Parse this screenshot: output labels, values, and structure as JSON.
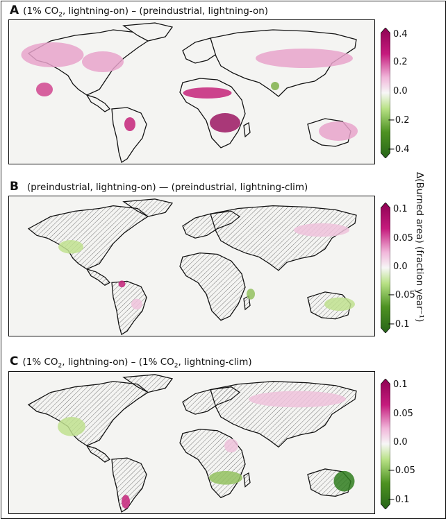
{
  "colorbar_label": "Δ(Burned area) (fraction year⁻¹)",
  "colors": {
    "cmap_neg": "#2e7d1b",
    "cmap_mid": "#f5f5f5",
    "cmap_pos": "#a3115f",
    "ocean_bg": "#f4f4f2",
    "land_hatch": "#555555",
    "coast": "#111111"
  },
  "panels": [
    {
      "letter": "A",
      "title_pre": "(1% CO",
      "title_sub": "2",
      "title_post": ", lightning-on) – (preindustrial, lightning-on)",
      "colorbar_ticks": [
        "0.4",
        "0.2",
        "0.0",
        "−0.2",
        "−0.4"
      ],
      "colorbar_range": [
        -0.4,
        0.4
      ]
    },
    {
      "letter": "B",
      "title_pre": "(preindustrial, lightning-on) — (preindustrial, lightning-clim)",
      "title_sub": "",
      "title_post": "",
      "colorbar_ticks": [
        "0.1",
        "0.05",
        "0.0",
        "−0.05",
        "−0.1"
      ],
      "colorbar_range": [
        -0.1,
        0.1
      ]
    },
    {
      "letter": "C",
      "title_pre": "(1% CO",
      "title_sub": "2",
      "title_post": ", lightning-on) – (1% CO",
      "title_sub2": "2",
      "title_post2": ", lightning-clim)",
      "colorbar_ticks": [
        "0.1",
        "0.05",
        "0.0",
        "−0.05",
        "−0.1"
      ],
      "colorbar_range": [
        -0.1,
        0.1
      ]
    }
  ]
}
